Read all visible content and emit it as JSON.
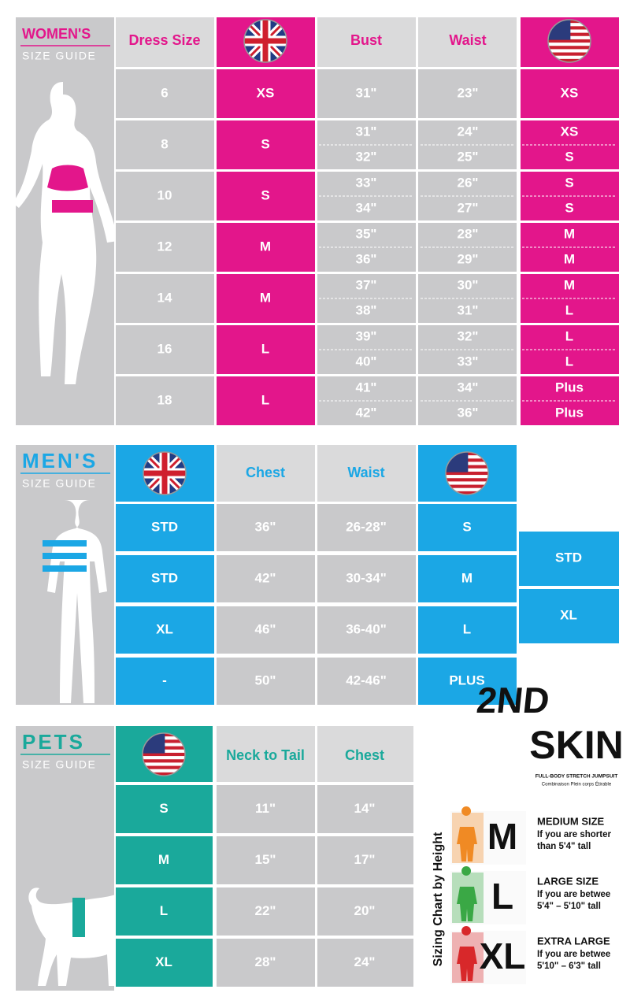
{
  "womens": {
    "title": "WOMEN'S",
    "subtitle": "SIZE GUIDE",
    "headers": [
      "Dress Size",
      "Bust",
      "Waist"
    ],
    "rows": [
      {
        "dress": "6",
        "uk": "XS",
        "bust": [
          "31\""
        ],
        "waist": [
          "23\""
        ],
        "us": [
          "XS"
        ]
      },
      {
        "dress": "8",
        "uk": "S",
        "bust": [
          "31\"",
          "32\""
        ],
        "waist": [
          "24\"",
          "25\""
        ],
        "us": [
          "XS",
          "S"
        ]
      },
      {
        "dress": "10",
        "uk": "S",
        "bust": [
          "33\"",
          "34\""
        ],
        "waist": [
          "26\"",
          "27\""
        ],
        "us": [
          "S",
          "S"
        ]
      },
      {
        "dress": "12",
        "uk": "M",
        "bust": [
          "35\"",
          "36\""
        ],
        "waist": [
          "28\"",
          "29\""
        ],
        "us": [
          "M",
          "M"
        ]
      },
      {
        "dress": "14",
        "uk": "M",
        "bust": [
          "37\"",
          "38\""
        ],
        "waist": [
          "30\"",
          "31\""
        ],
        "us": [
          "M",
          "L"
        ]
      },
      {
        "dress": "16",
        "uk": "L",
        "bust": [
          "39\"",
          "40\""
        ],
        "waist": [
          "32\"",
          "33\""
        ],
        "us": [
          "L",
          "L"
        ]
      },
      {
        "dress": "18",
        "uk": "L",
        "bust": [
          "41\"",
          "42\""
        ],
        "waist": [
          "34\"",
          "36\""
        ],
        "us": [
          "Plus",
          "Plus"
        ]
      }
    ]
  },
  "mens": {
    "title": "MEN'S",
    "subtitle": "SIZE GUIDE",
    "headers": [
      "Chest",
      "Waist"
    ],
    "rows": [
      {
        "uk": "STD",
        "chest": "36\"",
        "waist": "26-28\"",
        "us": "S"
      },
      {
        "uk": "STD",
        "chest": "42\"",
        "waist": "30-34\"",
        "us": "M"
      },
      {
        "uk": "XL",
        "chest": "46\"",
        "waist": "36-40\"",
        "us": "L"
      },
      {
        "uk": "-",
        "chest": "50\"",
        "waist": "42-46\"",
        "us": "PLUS"
      }
    ],
    "extra": [
      "STD",
      "XL"
    ]
  },
  "pets": {
    "title": "PETS",
    "subtitle": "SIZE GUIDE",
    "headers": [
      "Neck to Tail",
      "Chest"
    ],
    "rows": [
      {
        "us": "S",
        "neck": "11\"",
        "chest": "14\""
      },
      {
        "us": "M",
        "neck": "15\"",
        "chest": "17\""
      },
      {
        "us": "L",
        "neck": "22\"",
        "chest": "20\""
      },
      {
        "us": "XL",
        "neck": "28\"",
        "chest": "24\""
      }
    ]
  },
  "logo": {
    "top": "2ND",
    "bottom": "SKIN",
    "tagline": "FULL-BODY STRETCH JUMPSUIT",
    "tagline2": "Combinaison Plein corps Étirable"
  },
  "height_chart": {
    "title": "Sizing Chart by Height",
    "items": [
      {
        "size": "M",
        "name": "MEDIUM SIZE",
        "desc": [
          "If you are shorter",
          "than 5'4\" tall"
        ]
      },
      {
        "size": "L",
        "name": "LARGE SIZE",
        "desc": [
          "If you are betwee",
          "5'4\" – 5'10\" tall"
        ]
      },
      {
        "size": "XL",
        "name": "EXTRA LARGE",
        "desc": [
          "If you are betwee",
          "5'10\" – 6'3\" tall"
        ]
      }
    ]
  }
}
